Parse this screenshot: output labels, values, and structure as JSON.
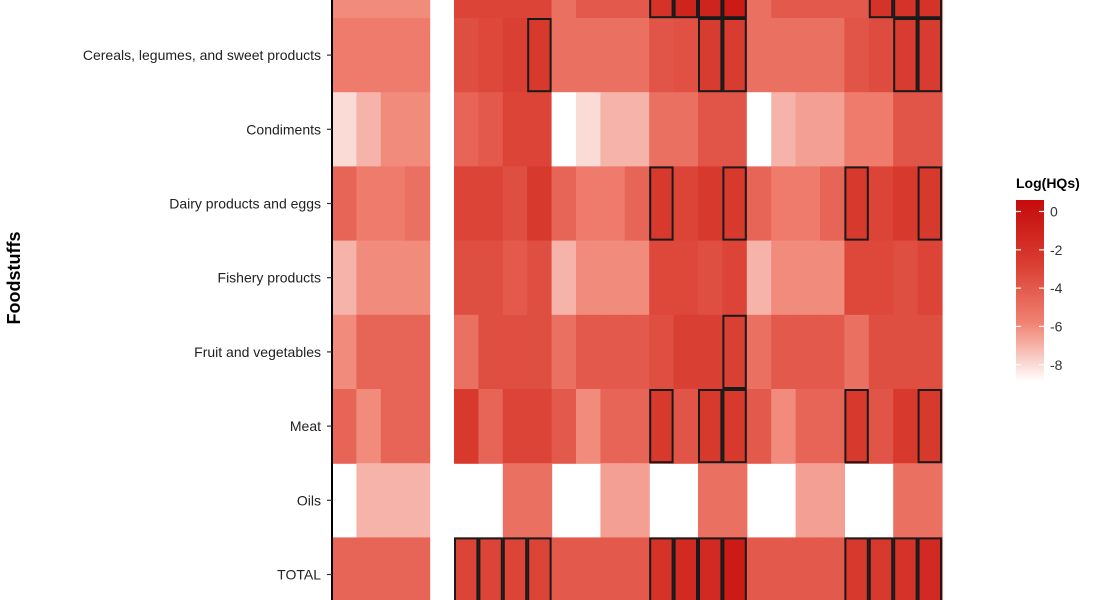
{
  "chart_data": {
    "type": "heatmap",
    "ylabel": "Foodstuffs",
    "rows": [
      "Cereals, legumes, and sweet products",
      "Condiments",
      "Dairy products and eggs",
      "Fishery products",
      "Fruit and vegetables",
      "Meat",
      "Oils",
      "TOTAL"
    ],
    "top_partial_row": [
      -6,
      -6,
      -6,
      -6,
      null,
      -3,
      -3,
      -3,
      -3,
      -5,
      -4,
      -4,
      -4,
      -2,
      -1,
      -1,
      -0.5,
      -5,
      -4,
      -4,
      -4,
      -4,
      -2,
      -2,
      -2
    ],
    "values": [
      [
        -5.5,
        -5.5,
        -5.5,
        -5.5,
        null,
        -3.5,
        -3.2,
        -2.8,
        -2.5,
        -5,
        -5,
        -5,
        -5,
        -3.8,
        -3.6,
        -2.6,
        -2.6,
        -5,
        -5,
        -5,
        -5,
        -3.8,
        -3.4,
        -2.6,
        -2.6
      ],
      [
        -8,
        -7,
        -6,
        -6,
        null,
        -4.5,
        -4,
        -3,
        -3,
        -9,
        -8,
        -7,
        -7,
        -5,
        -5,
        -3.8,
        -3.8,
        -9,
        -7,
        -6.5,
        -6.5,
        -5.5,
        -5.5,
        -3.8,
        -3.8
      ],
      [
        -4.5,
        -5.5,
        -5.5,
        -5,
        null,
        -3,
        -3,
        -3.5,
        -2.5,
        -4.5,
        -5.5,
        -5.5,
        -4.5,
        -2.5,
        -3,
        -2.5,
        -2.5,
        -4.5,
        -5.5,
        -5.5,
        -4.5,
        -2.5,
        -3,
        -2.5,
        -2.5
      ],
      [
        -7,
        -6,
        -6,
        -6,
        null,
        -3.5,
        -3.5,
        -4,
        -3.5,
        -7,
        -6,
        -6,
        -6,
        -3.2,
        -3.2,
        -3.5,
        -3,
        -7,
        -6,
        -6,
        -6,
        -3.2,
        -3.2,
        -3.5,
        -3
      ],
      [
        -6,
        -4.5,
        -4.5,
        -4.5,
        null,
        -5,
        -3.5,
        -3.5,
        -3.5,
        -5,
        -4,
        -4,
        -4,
        -3.5,
        -2.8,
        -2.8,
        -2.8,
        -5,
        -4,
        -4,
        -4,
        -5,
        -3.5,
        -3.5,
        -3.5
      ],
      [
        -4.5,
        -6,
        -4.5,
        -4.5,
        null,
        -2.5,
        -4.5,
        -3,
        -3,
        -4,
        -6,
        -4.5,
        -4.5,
        -2.5,
        -3.8,
        -2.5,
        -2.5,
        -4,
        -6,
        -4.5,
        -4.5,
        -2.5,
        -3.8,
        -2.5,
        -2.5
      ],
      [
        null,
        -7,
        -7,
        -7,
        null,
        null,
        null,
        -5,
        -5,
        null,
        null,
        -6.5,
        -6.5,
        null,
        null,
        -5,
        -5,
        null,
        null,
        -6.5,
        -6.5,
        null,
        null,
        -5,
        -5
      ],
      [
        -4.5,
        -4.5,
        -4.5,
        -4.5,
        null,
        -3,
        -3,
        -3,
        -3,
        -4,
        -4,
        -4,
        -4,
        -2,
        -1.5,
        -1.5,
        -0.5,
        -4,
        -4,
        -4,
        -4,
        -2.5,
        -2.5,
        -2,
        -1.5
      ]
    ],
    "outlined_cells": [
      {
        "row": "Cereals, legumes, and sweet products",
        "cols": [
          8,
          15,
          16,
          23,
          24
        ]
      },
      {
        "row": "Dairy products and eggs",
        "cols": [
          13,
          16,
          21,
          24
        ]
      },
      {
        "row": "Fruit and vegetables",
        "cols": [
          16
        ]
      },
      {
        "row": "Meat",
        "cols": [
          13,
          15,
          16,
          21,
          24
        ]
      },
      {
        "row": "TOTAL",
        "cols": [
          5,
          6,
          7,
          8,
          13,
          14,
          15,
          16,
          21,
          22,
          23,
          24
        ]
      }
    ],
    "legend": {
      "title": "Log(HQs)",
      "placement": "right",
      "ticks": [
        0,
        -2,
        -4,
        -6,
        -8
      ],
      "tick_labels": [
        "0",
        "-2",
        "-4",
        "-6",
        "-8"
      ],
      "range": [
        -8.9,
        0.6
      ],
      "colors": [
        "#ffffff",
        "#f08070",
        "#d83a2e",
        "#c50b0b"
      ]
    },
    "grid": false
  }
}
